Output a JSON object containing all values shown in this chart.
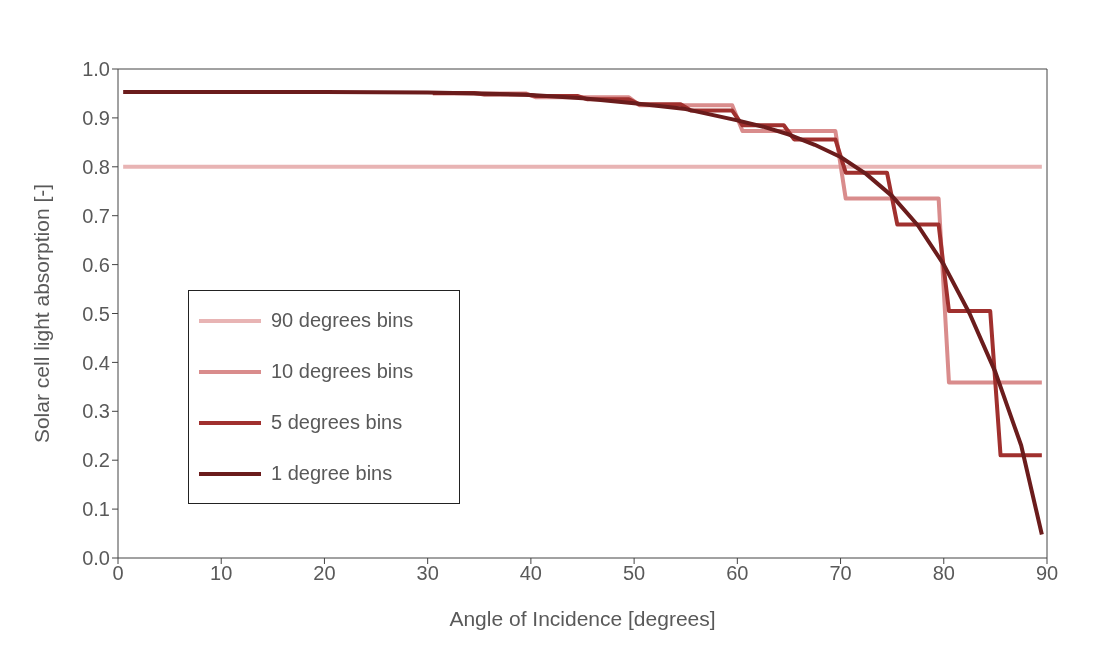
{
  "chart_data": {
    "type": "line",
    "xlabel": "Angle of Incidence [degrees]",
    "ylabel": "Solar cell light absorption [-]",
    "xlim": [
      0,
      90
    ],
    "xticks": [
      0,
      10,
      20,
      30,
      40,
      50,
      60,
      70,
      80,
      90
    ],
    "ylim": [
      0,
      1
    ],
    "yticks": [
      {
        "value": 0,
        "label": "0.0"
      },
      {
        "value": 0.1,
        "label": "0.1"
      },
      {
        "value": 0.2,
        "label": "0.2"
      },
      {
        "value": 0.3,
        "label": "0.3"
      },
      {
        "value": 0.4,
        "label": "0.4"
      },
      {
        "value": 0.5,
        "label": "0.5"
      },
      {
        "value": 0.6,
        "label": "0.6"
      },
      {
        "value": 0.7,
        "label": "0.7"
      },
      {
        "value": 0.8,
        "label": "0.8"
      },
      {
        "value": 0.9,
        "label": "0.9"
      },
      {
        "value": 1,
        "label": "1.0"
      }
    ],
    "grid": false,
    "legend": "left",
    "marker": "none",
    "line_style": "solid",
    "series": [
      {
        "name": "90 degrees bins",
        "color": "#e8b4b4",
        "x": [
          0.5,
          89.5
        ],
        "values": [
          0.8,
          0.8
        ]
      },
      {
        "name": "10 degrees bins",
        "color": "#d98c8c",
        "x": [
          30.5,
          39.5,
          40.5,
          49.5,
          50.5,
          59.5,
          60.5,
          69.5,
          70.5,
          79.5,
          80.5,
          89.5
        ],
        "values": [
          0.95,
          0.95,
          0.942,
          0.942,
          0.926,
          0.926,
          0.873,
          0.873,
          0.735,
          0.735,
          0.359,
          0.359
        ]
      },
      {
        "name": "5 degrees bins",
        "color": "#a0302e",
        "x": [
          30.5,
          34.5,
          35.5,
          39.5,
          40.5,
          44.5,
          45.5,
          49.5,
          50.5,
          54.5,
          55.5,
          59.5,
          60.5,
          64.5,
          65.5,
          69.5,
          70.5,
          74.5,
          75.5,
          79.5,
          80.5,
          84.5,
          85.5,
          89.5
        ],
        "values": [
          0.951,
          0.951,
          0.948,
          0.948,
          0.945,
          0.945,
          0.938,
          0.938,
          0.928,
          0.928,
          0.915,
          0.915,
          0.885,
          0.885,
          0.856,
          0.856,
          0.788,
          0.788,
          0.682,
          0.682,
          0.505,
          0.505,
          0.21,
          0.21
        ]
      },
      {
        "name": "1 degree bins",
        "color": "#6b1c1c",
        "x": [
          0.5,
          10,
          20,
          30,
          35,
          40,
          45,
          50,
          55,
          60,
          62.5,
          65,
          67.5,
          70,
          72.5,
          75,
          77.5,
          80,
          82.5,
          85,
          87.5,
          89.5
        ],
        "values": [
          0.953,
          0.953,
          0.953,
          0.952,
          0.95,
          0.947,
          0.94,
          0.93,
          0.918,
          0.895,
          0.882,
          0.866,
          0.845,
          0.82,
          0.785,
          0.74,
          0.68,
          0.6,
          0.5,
          0.38,
          0.23,
          0.048
        ]
      }
    ]
  }
}
